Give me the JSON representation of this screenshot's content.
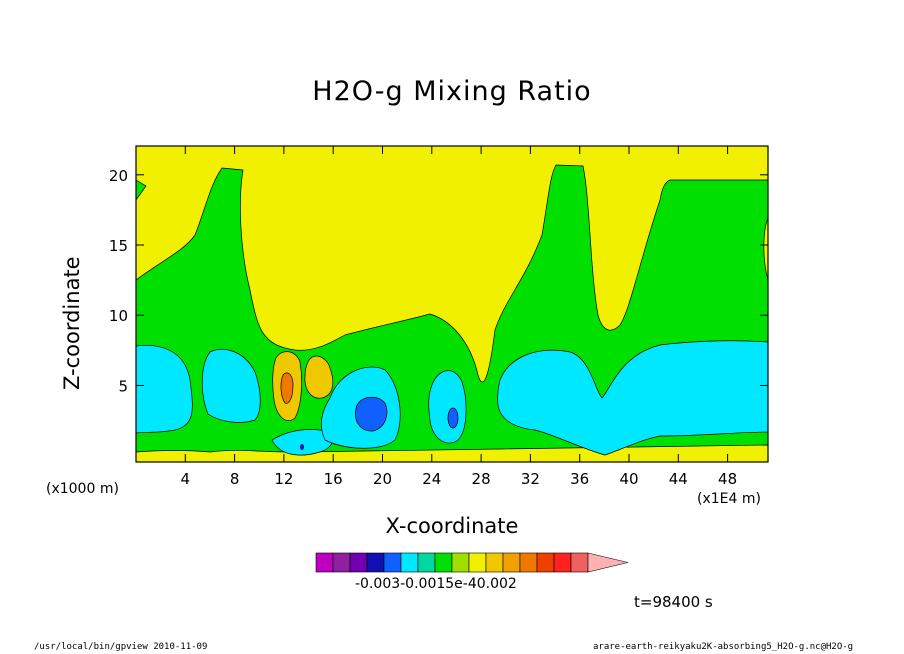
{
  "chart_data": {
    "type": "contour",
    "title": "H2O-g Mixing Ratio",
    "xlabel": "X-coordinate",
    "ylabel": "Z-coordinate",
    "x_unit_label": "(x1E4 m)",
    "y_unit_label": "(x1000 m)",
    "x_ticks": [
      "4",
      "8",
      "12",
      "16",
      "20",
      "24",
      "28",
      "32",
      "36",
      "40",
      "44",
      "48"
    ],
    "y_ticks": [
      "5",
      "10",
      "15",
      "20"
    ],
    "xlim": [
      0,
      51
    ],
    "ylim": [
      0,
      22.5
    ],
    "colorbar": {
      "colors": [
        "#c000c0",
        "#9020a0",
        "#7000b0",
        "#1010b0",
        "#1060ff",
        "#00e8ff",
        "#00d8a0",
        "#00e000",
        "#a0e000",
        "#f0f000",
        "#f0c800",
        "#f0a000",
        "#f07800",
        "#f04000",
        "#ff2020",
        "#f06060",
        "#ffb0b0"
      ],
      "tick_label": "-0.003-0.0015e-40.002"
    },
    "time_label": "t=98400 s"
  },
  "footer": {
    "left": "/usr/local/bin/gpview   2010-11-09",
    "right": "arare-earth-reikyaku2K-absorbing5_H2O-g.nc@H2O-g"
  }
}
